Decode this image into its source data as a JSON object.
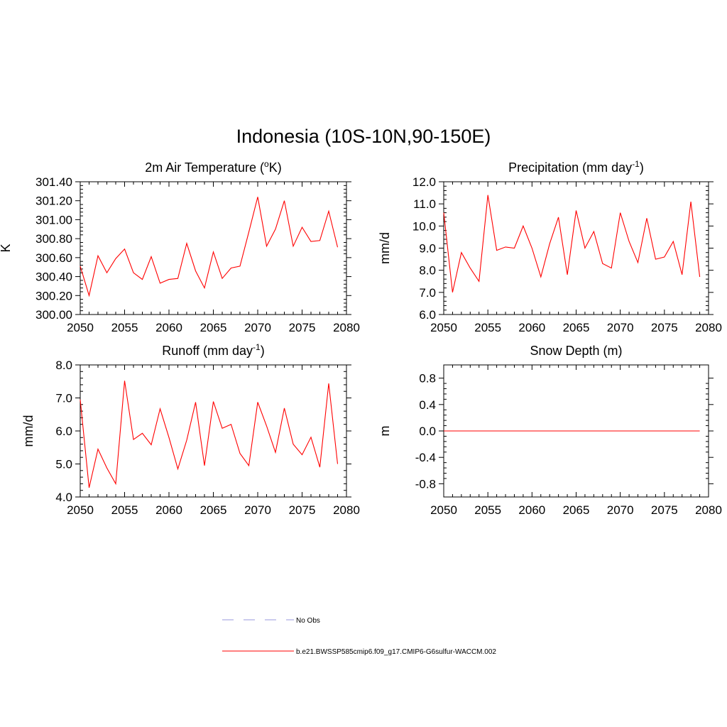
{
  "figure": {
    "title": "Indonesia (10S-10N,90-150E)"
  },
  "colors": {
    "model_line": "#ff0000",
    "obs_line": "#9999dd",
    "axes": "#000000"
  },
  "legend": {
    "items": [
      {
        "label": "No Obs",
        "style": "dashed",
        "color": "#9999dd"
      },
      {
        "label": "b.e21.BWSSP585cmip6.f09_g17.CMIP6-G6sulfur-WACCM.002",
        "style": "solid",
        "color": "#ff0000"
      }
    ]
  },
  "chart_data": [
    {
      "id": "temperature",
      "type": "line",
      "title": "2m Air Temperature (°K)",
      "title_parts": {
        "main": "2m Air Temperature (",
        "sup": "o",
        "after": "K)"
      },
      "xlabel": "",
      "ylabel": "K",
      "xlim": [
        2050,
        2080
      ],
      "ylim": [
        300.0,
        301.4
      ],
      "xticks": [
        2050,
        2055,
        2060,
        2065,
        2070,
        2075,
        2080
      ],
      "yticks": [
        "300.00",
        "300.20",
        "300.40",
        "300.60",
        "300.80",
        "301.00",
        "301.20",
        "301.40"
      ],
      "x": [
        2050,
        2051,
        2052,
        2053,
        2054,
        2055,
        2056,
        2057,
        2058,
        2059,
        2060,
        2061,
        2062,
        2063,
        2064,
        2065,
        2066,
        2067,
        2068,
        2069,
        2070,
        2071,
        2072,
        2073,
        2074,
        2075,
        2076,
        2077,
        2078,
        2079
      ],
      "series": [
        {
          "values": [
            300.51,
            300.2,
            300.62,
            300.44,
            300.59,
            300.69,
            300.44,
            300.37,
            300.61,
            300.33,
            300.37,
            300.38,
            300.75,
            300.46,
            300.28,
            300.66,
            300.38,
            300.49,
            300.51,
            300.87,
            301.24,
            300.72,
            300.9,
            301.2,
            300.72,
            300.92,
            300.77,
            300.78,
            301.09,
            300.71
          ]
        }
      ]
    },
    {
      "id": "precipitation",
      "type": "line",
      "title": "Precipitation (mm day-1)",
      "title_parts": {
        "main": "Precipitation (mm day",
        "sup": "-1",
        "after": ")"
      },
      "xlabel": "",
      "ylabel": "mm/d",
      "xlim": [
        2050,
        2080
      ],
      "ylim": [
        6.0,
        12.0
      ],
      "xticks": [
        2050,
        2055,
        2060,
        2065,
        2070,
        2075,
        2080
      ],
      "yticks": [
        "6.0",
        "7.0",
        "8.0",
        "9.0",
        "10.0",
        "11.0",
        "12.0"
      ],
      "x": [
        2050,
        2051,
        2052,
        2053,
        2054,
        2055,
        2056,
        2057,
        2058,
        2059,
        2060,
        2061,
        2062,
        2063,
        2064,
        2065,
        2066,
        2067,
        2068,
        2069,
        2070,
        2071,
        2072,
        2073,
        2074,
        2075,
        2076,
        2077,
        2078,
        2079
      ],
      "series": [
        {
          "values": [
            10.6,
            7.0,
            8.8,
            8.1,
            7.5,
            11.4,
            8.9,
            9.05,
            9.0,
            10.0,
            9.0,
            7.7,
            9.2,
            10.4,
            7.8,
            10.7,
            9.0,
            9.75,
            8.3,
            8.1,
            10.6,
            9.3,
            8.35,
            10.35,
            8.5,
            8.6,
            9.3,
            7.8,
            11.1,
            7.7
          ]
        }
      ]
    },
    {
      "id": "runoff",
      "type": "line",
      "title": "Runoff (mm day-1)",
      "title_parts": {
        "main": "Runoff (mm day",
        "sup": "-1",
        "after": ")"
      },
      "xlabel": "",
      "ylabel": "mm/d",
      "xlim": [
        2050,
        2080
      ],
      "ylim": [
        4.0,
        8.0
      ],
      "xticks": [
        2050,
        2055,
        2060,
        2065,
        2070,
        2075,
        2080
      ],
      "yticks": [
        "4.0",
        "5.0",
        "6.0",
        "7.0",
        "8.0"
      ],
      "x": [
        2050,
        2051,
        2052,
        2053,
        2054,
        2055,
        2056,
        2057,
        2058,
        2059,
        2060,
        2061,
        2062,
        2063,
        2064,
        2065,
        2066,
        2067,
        2068,
        2069,
        2070,
        2071,
        2072,
        2073,
        2074,
        2075,
        2076,
        2077,
        2078,
        2079
      ],
      "series": [
        {
          "values": [
            6.95,
            4.28,
            5.45,
            4.88,
            4.4,
            7.52,
            5.74,
            5.93,
            5.58,
            6.67,
            5.8,
            4.85,
            5.72,
            6.87,
            4.95,
            6.89,
            6.08,
            6.2,
            5.32,
            4.95,
            6.87,
            6.15,
            5.35,
            6.69,
            5.6,
            5.28,
            5.81,
            4.9,
            7.44,
            5.0
          ]
        }
      ]
    },
    {
      "id": "snow",
      "type": "line",
      "title": "Snow Depth (m)",
      "title_parts": {
        "main": "Snow Depth (m)",
        "sup": "",
        "after": ""
      },
      "xlabel": "",
      "ylabel": "m",
      "xlim": [
        2050,
        2080
      ],
      "ylim": [
        -1.0,
        1.0
      ],
      "xticks": [
        2050,
        2055,
        2060,
        2065,
        2070,
        2075,
        2080
      ],
      "yticks": [
        "-0.8",
        "-0.4",
        "0.0",
        "0.4",
        "0.8"
      ],
      "ytick_values": [
        -0.8,
        -0.4,
        0.0,
        0.4,
        0.8
      ],
      "x": [
        2050,
        2051,
        2052,
        2053,
        2054,
        2055,
        2056,
        2057,
        2058,
        2059,
        2060,
        2061,
        2062,
        2063,
        2064,
        2065,
        2066,
        2067,
        2068,
        2069,
        2070,
        2071,
        2072,
        2073,
        2074,
        2075,
        2076,
        2077,
        2078,
        2079
      ],
      "series": [
        {
          "values": [
            0,
            0,
            0,
            0,
            0,
            0,
            0,
            0,
            0,
            0,
            0,
            0,
            0,
            0,
            0,
            0,
            0,
            0,
            0,
            0,
            0,
            0,
            0,
            0,
            0,
            0,
            0,
            0,
            0,
            0
          ]
        }
      ]
    }
  ]
}
